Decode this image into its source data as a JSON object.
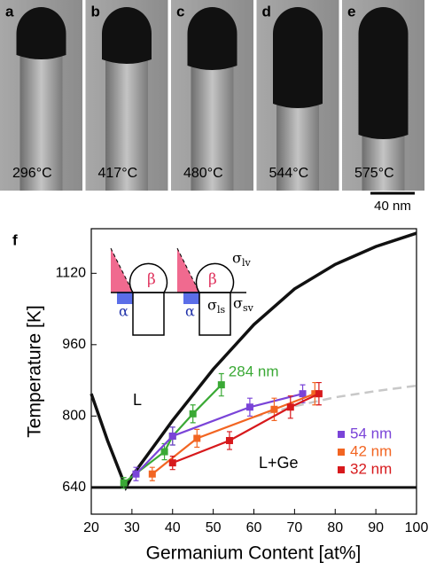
{
  "panels": [
    {
      "letter": "a",
      "temperature": "296°C"
    },
    {
      "letter": "b",
      "temperature": "417°C"
    },
    {
      "letter": "c",
      "temperature": "480°C"
    },
    {
      "letter": "d",
      "temperature": "544°C"
    },
    {
      "letter": "e",
      "temperature": "575°C"
    }
  ],
  "scale_bar": "40 nm",
  "inset": {
    "alpha": "α",
    "beta": "β",
    "sigma": "σ",
    "lv": "lv",
    "ls": "ls",
    "sv": "sv"
  },
  "chart_data": {
    "type": "line",
    "panel_letter": "f",
    "x_label": "Germanium Content [at%]",
    "y_label": "Temperature [K]",
    "xlim": [
      20,
      100
    ],
    "ylim": [
      580,
      1220
    ],
    "xticks": [
      20,
      30,
      40,
      50,
      60,
      70,
      80,
      90,
      100
    ],
    "yticks": [
      640,
      800,
      960,
      1120
    ],
    "annotations": [
      "L",
      "L+Ge"
    ],
    "liquidus": {
      "x": [
        20,
        24,
        28.5,
        30,
        40,
        50,
        60,
        70,
        80,
        90,
        100
      ],
      "y": [
        850,
        745,
        640,
        665,
        790,
        905,
        1005,
        1085,
        1140,
        1180,
        1210
      ]
    },
    "eutectic_y": 640,
    "gray_curve": {
      "x": [
        60,
        70,
        80,
        90,
        100
      ],
      "y": [
        798,
        822,
        842,
        856,
        868
      ]
    },
    "series": [
      {
        "name": "284 nm",
        "color": "#3aa935",
        "x": [
          28,
          38,
          40,
          45,
          52
        ],
        "values": [
          650,
          720,
          755,
          805,
          870
        ],
        "errors": [
          12,
          18,
          20,
          20,
          25
        ]
      },
      {
        "name": "54 nm",
        "color": "#7a44d8",
        "x": [
          31,
          40,
          59,
          72
        ],
        "values": [
          670,
          755,
          820,
          850
        ],
        "errors": [
          15,
          20,
          20,
          20
        ]
      },
      {
        "name": "42 nm",
        "color": "#f26522",
        "x": [
          35,
          46,
          65,
          75
        ],
        "values": [
          670,
          750,
          815,
          850
        ],
        "errors": [
          15,
          20,
          25,
          25
        ]
      },
      {
        "name": "32 nm",
        "color": "#d7191c",
        "x": [
          40,
          54,
          69,
          76
        ],
        "values": [
          695,
          745,
          820,
          850
        ],
        "errors": [
          15,
          20,
          25,
          25
        ]
      }
    ]
  }
}
